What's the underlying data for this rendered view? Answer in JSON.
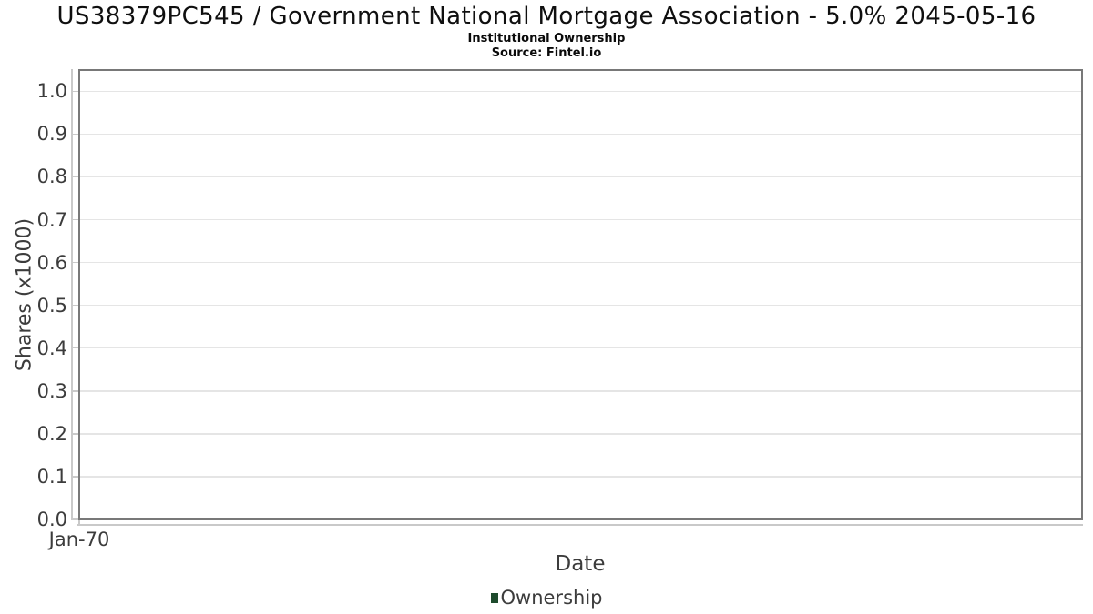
{
  "colors": {
    "series_green": "#1e4b2d",
    "plot_border": "#787878",
    "gridline": "#e5e5e5",
    "axis_line": "#c9c9c9",
    "title_text": "#0f0f0f",
    "axis_text": "#3c3c3c"
  },
  "chart_data": {
    "type": "line",
    "title": "US38379PC545 / Government National Mortgage Association - 5.0% 2045-05-16",
    "subtitle": "Institutional Ownership",
    "source": "Source: Fintel.io",
    "xlabel": "Date",
    "ylabel": "Shares (x1000)",
    "x_tick_labels": [
      "Jan-70"
    ],
    "y_ticks": [
      {
        "value": 0.0,
        "label": "0.0"
      },
      {
        "value": 0.1,
        "label": "0.1"
      },
      {
        "value": 0.2,
        "label": "0.2"
      },
      {
        "value": 0.3,
        "label": "0.3"
      },
      {
        "value": 0.4,
        "label": "0.4"
      },
      {
        "value": 0.5,
        "label": "0.5"
      },
      {
        "value": 0.6,
        "label": "0.6"
      },
      {
        "value": 0.7,
        "label": "0.7"
      },
      {
        "value": 0.8,
        "label": "0.8"
      },
      {
        "value": 0.9,
        "label": "0.9"
      },
      {
        "value": 1.0,
        "label": "1.0"
      }
    ],
    "ylim": [
      0,
      1.05
    ],
    "grid": "horizontal",
    "legend_position": "bottom",
    "series": [
      {
        "name": "Ownership",
        "color": "#1e4b2d",
        "x": [],
        "values": []
      }
    ]
  }
}
